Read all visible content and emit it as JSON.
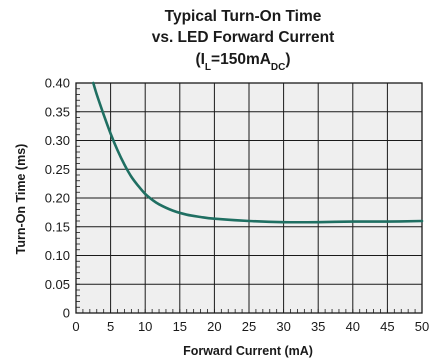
{
  "chart_data": {
    "type": "line",
    "title_line1": "Typical Turn-On Time",
    "title_line2": "vs. LED Forward Current",
    "title_line3_prefix": "(I",
    "title_line3_sub1": "L",
    "title_line3_mid": "=150mA",
    "title_line3_sub2": "DC",
    "title_line3_suffix": ")",
    "xlabel": "Forward Current (mA)",
    "ylabel": "Turn-On Time (ms)",
    "xlim": [
      0,
      50
    ],
    "ylim": [
      0,
      0.4
    ],
    "x_ticks": [
      0,
      5,
      10,
      15,
      20,
      25,
      30,
      35,
      40,
      45,
      50
    ],
    "y_ticks": [
      0,
      0.05,
      0.1,
      0.15,
      0.2,
      0.25,
      0.3,
      0.35,
      0.4
    ],
    "x_tick_labels": [
      "0",
      "5",
      "10",
      "15",
      "20",
      "25",
      "30",
      "35",
      "40",
      "45",
      "50"
    ],
    "y_tick_labels": [
      "0",
      "0.05",
      "0.10",
      "0.15",
      "0.20",
      "0.25",
      "0.30",
      "0.35",
      "0.40"
    ],
    "grid": true,
    "minor_ticks": true,
    "colors": {
      "line": "#1f6f62",
      "plot_bg": "#efefef",
      "grid": "#1a1a1a"
    },
    "series": [
      {
        "x": [
          2.5,
          3,
          4,
          5,
          6,
          7,
          8,
          9,
          10,
          11,
          12,
          14,
          16,
          18,
          20,
          25,
          30,
          35,
          40,
          45,
          50
        ],
        "y": [
          0.4,
          0.38,
          0.345,
          0.312,
          0.283,
          0.258,
          0.237,
          0.221,
          0.207,
          0.197,
          0.189,
          0.178,
          0.171,
          0.167,
          0.164,
          0.16,
          0.158,
          0.158,
          0.159,
          0.159,
          0.16
        ]
      }
    ]
  }
}
